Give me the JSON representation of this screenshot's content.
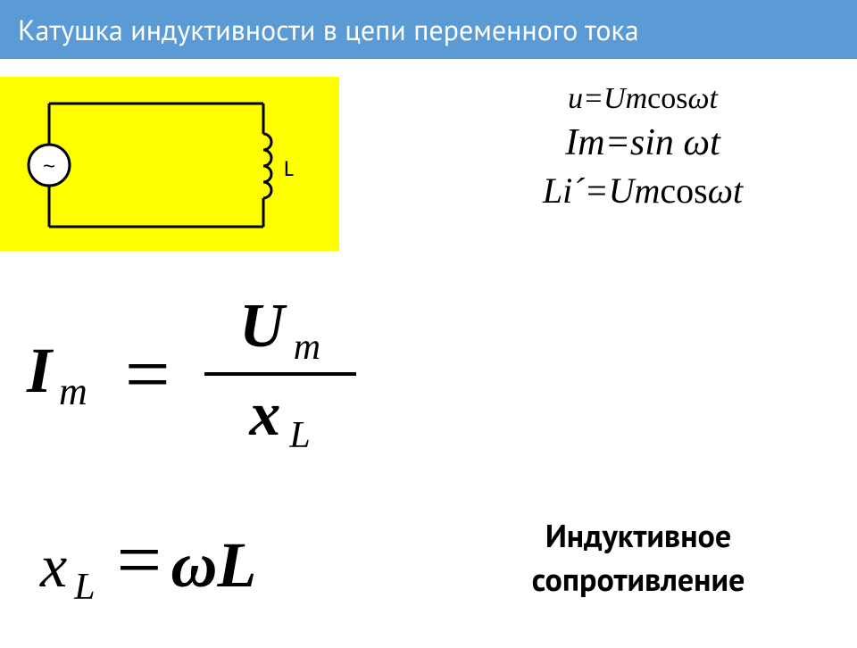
{
  "title": "Катушка индуктивности в цепи переменного тока",
  "circuit": {
    "label_L": "L",
    "source_symbol": "~",
    "background_color": "#ffff00",
    "stroke_color": "#000000"
  },
  "equations_right": {
    "line1_html": "u=Um<span class='upright'>cos</span>ωt",
    "line2_html": "Im=sin ωt",
    "line3_html": "Li´=Um<span class='upright'>cos</span>ωt"
  },
  "formula1": {
    "lhs_main": "I",
    "lhs_sub": "m",
    "num_main": "U",
    "num_sub": "m",
    "den_main": "x",
    "den_sub": "L"
  },
  "formula2": {
    "lhs_main": "x",
    "lhs_sub": "L",
    "rhs_html": "<span class='omega-it'>ω</span>L"
  },
  "caption_line1": "Индуктивное",
  "caption_line2": "сопротивление",
  "colors": {
    "title_bg": "#5b9bd5",
    "title_text": "#ffffff",
    "body_bg": "#ffffff",
    "text": "#000000"
  }
}
